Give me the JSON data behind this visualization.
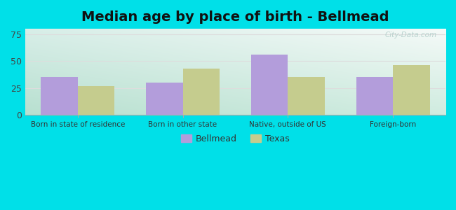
{
  "title": "Median age by place of birth - Bellmead",
  "categories": [
    "Born in state of residence",
    "Born in other state",
    "Native, outside of US",
    "Foreign-born"
  ],
  "bellmead_values": [
    35,
    30,
    56,
    35
  ],
  "texas_values": [
    27,
    43,
    35,
    46
  ],
  "bellmead_color": "#b39ddb",
  "texas_color": "#c5cc8e",
  "ylim": [
    0,
    80
  ],
  "yticks": [
    0,
    25,
    50,
    75
  ],
  "bar_width": 0.35,
  "background_outer": "#00e0e8",
  "grid_color": "#dddddd",
  "title_fontsize": 14,
  "legend_labels": [
    "Bellmead",
    "Texas"
  ],
  "watermark": "City-Data.com",
  "grad_top_left": "#d6ede8",
  "grad_top_right": "#f0f8f5",
  "grad_bottom_left": "#c8e8d0",
  "grad_bottom_right": "#e8f5ef"
}
